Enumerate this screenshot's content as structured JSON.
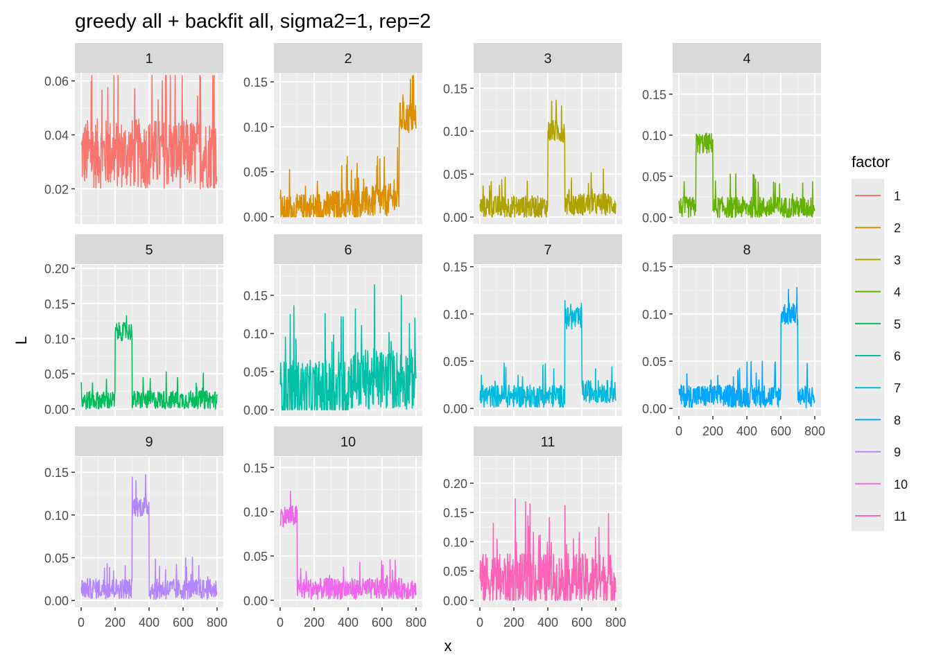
{
  "chart_data": {
    "type": "line",
    "title": "greedy all + backfit all, sigma2=1, rep=2",
    "xlabel": "x",
    "ylabel": "L",
    "x_range": [
      0,
      800
    ],
    "x_ticks": [
      0,
      200,
      400,
      600,
      800
    ],
    "grid": true,
    "legend": {
      "title": "factor",
      "position": "right",
      "entries": [
        "1",
        "2",
        "3",
        "4",
        "5",
        "6",
        "7",
        "8",
        "9",
        "10",
        "11"
      ]
    },
    "facets": [
      {
        "label": "1",
        "color": "#F8766D",
        "ylim": [
          0.007,
          0.063
        ],
        "yticks": [
          0.02,
          0.04,
          0.06
        ],
        "ytick_labels": [
          "0.02",
          "0.04",
          "0.06"
        ],
        "profile": [
          [
            0,
            800,
            0.033
          ]
        ],
        "noise": 0.013,
        "ymin": 0.008,
        "ymax": 0.062
      },
      {
        "label": "2",
        "color": "#DB8E00",
        "ylim": [
          -0.008,
          0.16
        ],
        "yticks": [
          0,
          0.05,
          0.1,
          0.15
        ],
        "ytick_labels": [
          "0.00",
          "0.05",
          "0.10",
          "0.15"
        ],
        "profile": [
          [
            0,
            700,
            0.005,
            0.02
          ],
          [
            700,
            800,
            0.11
          ]
        ],
        "noise": 0.018,
        "ymin": 0.0,
        "ymax": 0.157
      },
      {
        "label": "3",
        "color": "#AEA200",
        "ylim": [
          -0.008,
          0.168
        ],
        "yticks": [
          0,
          0.05,
          0.1,
          0.15
        ],
        "ytick_labels": [
          "0.00",
          "0.05",
          "0.10",
          "0.15"
        ],
        "profile": [
          [
            0,
            400,
            0.012
          ],
          [
            400,
            500,
            0.1
          ],
          [
            500,
            800,
            0.015
          ]
        ],
        "noise": 0.013,
        "ymin": 0.0,
        "ymax": 0.165
      },
      {
        "label": "4",
        "color": "#64B200",
        "ylim": [
          -0.008,
          0.176
        ],
        "yticks": [
          0,
          0.05,
          0.1,
          0.15
        ],
        "ytick_labels": [
          "0.00",
          "0.05",
          "0.10",
          "0.15"
        ],
        "profile": [
          [
            0,
            100,
            0.012
          ],
          [
            100,
            200,
            0.09
          ],
          [
            200,
            800,
            0.012
          ]
        ],
        "noise": 0.013,
        "ymin": 0.0,
        "ymax": 0.174
      },
      {
        "label": "5",
        "color": "#00BD5C",
        "ylim": [
          -0.01,
          0.205
        ],
        "yticks": [
          0,
          0.05,
          0.1,
          0.15,
          0.2
        ],
        "ytick_labels": [
          "0.00",
          "0.05",
          "0.10",
          "0.15",
          "0.20"
        ],
        "profile": [
          [
            0,
            200,
            0.012
          ],
          [
            200,
            300,
            0.11
          ],
          [
            300,
            800,
            0.013
          ]
        ],
        "noise": 0.013,
        "ymin": 0.0,
        "ymax": 0.198
      },
      {
        "label": "6",
        "color": "#00C1A7",
        "ylim": [
          -0.008,
          0.19
        ],
        "yticks": [
          0,
          0.05,
          0.1,
          0.15
        ],
        "ytick_labels": [
          "0.00",
          "0.05",
          "0.10",
          "0.15"
        ],
        "profile": [
          [
            0,
            400,
            0.025
          ],
          [
            400,
            800,
            0.04
          ]
        ],
        "noise": 0.04,
        "ymin": 0.0,
        "ymax": 0.178
      },
      {
        "label": "7",
        "color": "#00BADE",
        "ylim": [
          -0.008,
          0.152
        ],
        "yticks": [
          0,
          0.05,
          0.1,
          0.15
        ],
        "ytick_labels": [
          "0.00",
          "0.05",
          "0.10",
          "0.15"
        ],
        "profile": [
          [
            0,
            500,
            0.013
          ],
          [
            500,
            600,
            0.095
          ],
          [
            600,
            800,
            0.018
          ]
        ],
        "noise": 0.012,
        "ymin": 0.0,
        "ymax": 0.145
      },
      {
        "label": "8",
        "color": "#00A6FF",
        "ylim": [
          -0.008,
          0.152
        ],
        "yticks": [
          0,
          0.05,
          0.1,
          0.15
        ],
        "ytick_labels": [
          "0.00",
          "0.05",
          "0.10",
          "0.15"
        ],
        "profile": [
          [
            0,
            600,
            0.013
          ],
          [
            600,
            700,
            0.1
          ],
          [
            700,
            800,
            0.012
          ]
        ],
        "noise": 0.012,
        "ymin": 0.0,
        "ymax": 0.145
      },
      {
        "label": "9",
        "color": "#B385FF",
        "ylim": [
          -0.008,
          0.168
        ],
        "yticks": [
          0,
          0.05,
          0.1,
          0.15
        ],
        "ytick_labels": [
          "0.00",
          "0.05",
          "0.10",
          "0.15"
        ],
        "profile": [
          [
            0,
            300,
            0.014
          ],
          [
            300,
            400,
            0.11
          ],
          [
            400,
            800,
            0.013
          ]
        ],
        "noise": 0.012,
        "ymin": 0.0,
        "ymax": 0.16
      },
      {
        "label": "10",
        "color": "#EF67EB",
        "ylim": [
          -0.008,
          0.162
        ],
        "yticks": [
          0,
          0.05,
          0.1,
          0.15
        ],
        "ytick_labels": [
          "0.00",
          "0.05",
          "0.10",
          "0.15"
        ],
        "profile": [
          [
            0,
            100,
            0.095
          ],
          [
            100,
            800,
            0.013
          ]
        ],
        "noise": 0.012,
        "ymin": 0.0,
        "ymax": 0.155
      },
      {
        "label": "11",
        "color": "#FF63B6",
        "ylim": [
          -0.012,
          0.245
        ],
        "yticks": [
          0,
          0.05,
          0.1,
          0.15,
          0.2
        ],
        "ytick_labels": [
          "0.00",
          "0.05",
          "0.10",
          "0.15",
          "0.20"
        ],
        "profile": [
          [
            0,
            800,
            0.035
          ]
        ],
        "noise": 0.045,
        "ymin": 0.0,
        "ymax": 0.235
      }
    ]
  }
}
